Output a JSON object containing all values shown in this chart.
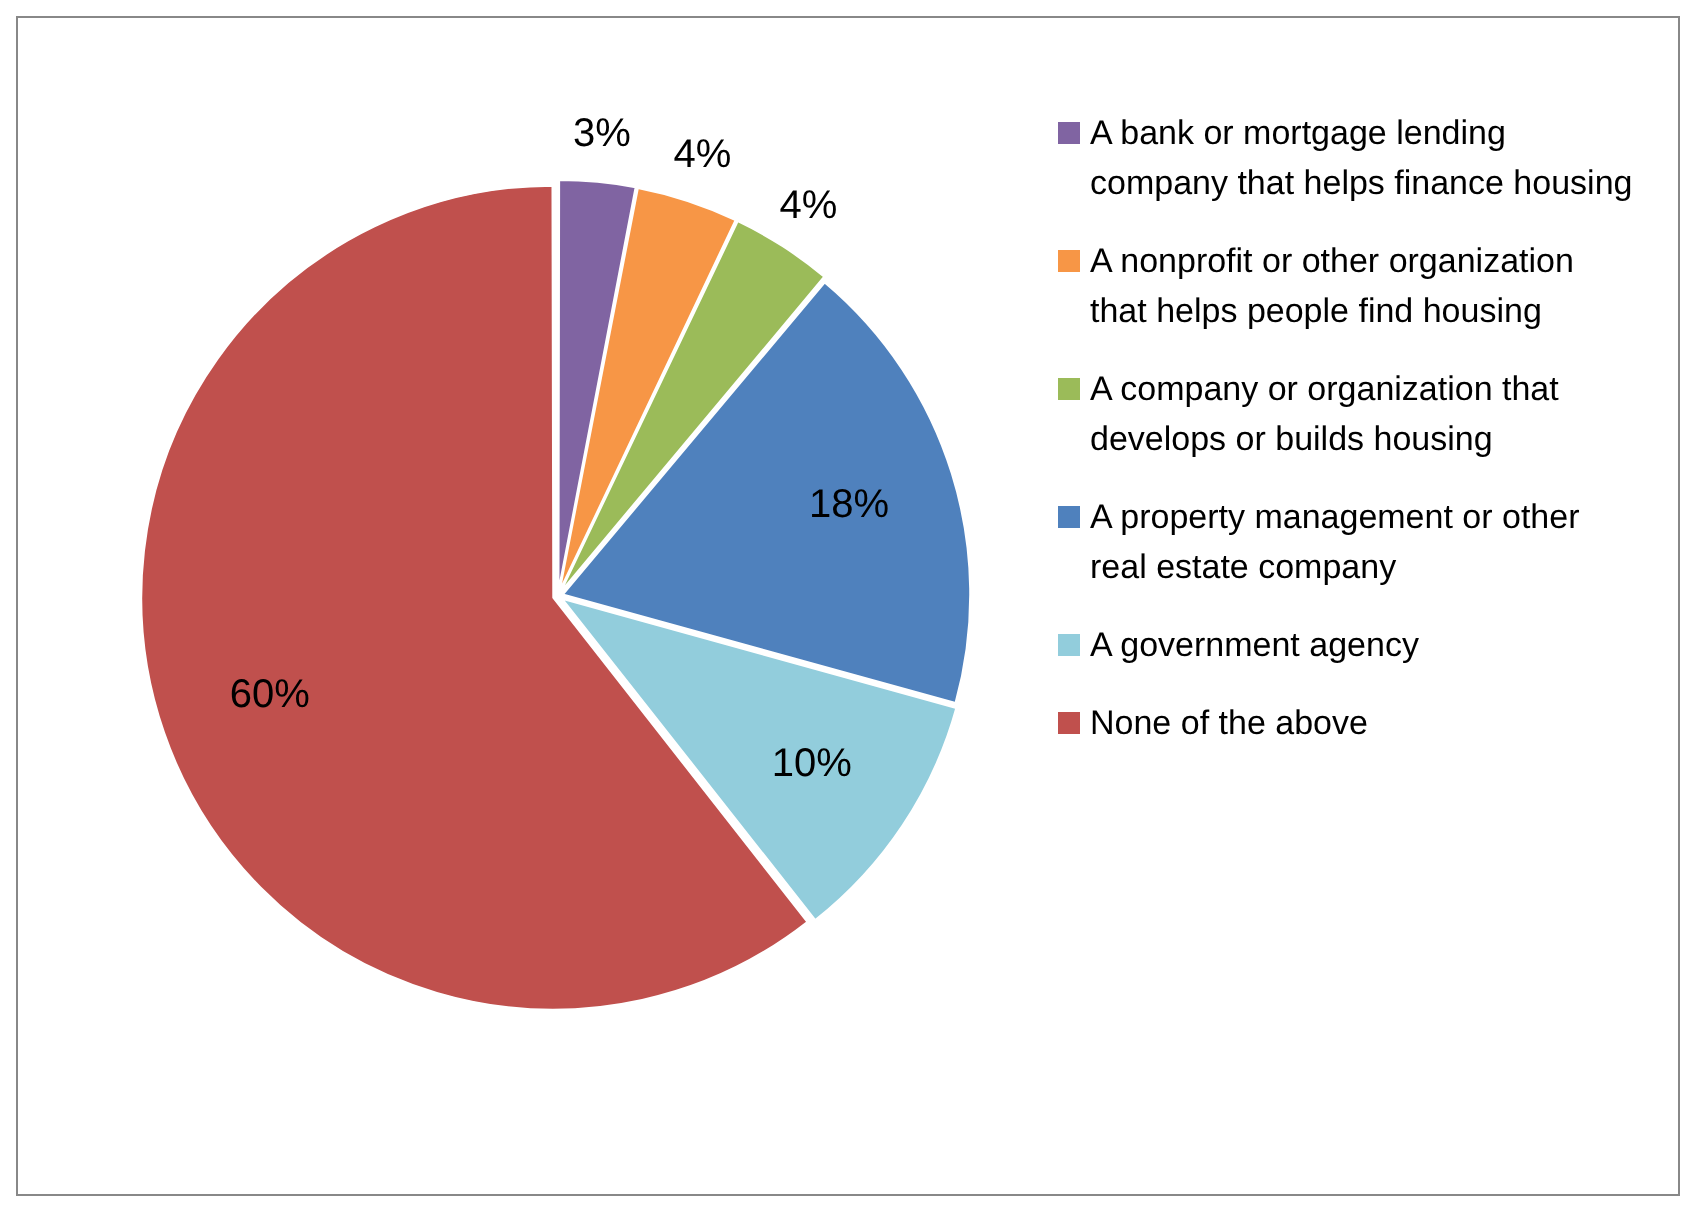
{
  "chart_data": {
    "type": "pie",
    "categories": [
      "A bank or mortgage lending company that helps finance housing",
      "A nonprofit or other organization that helps people find housing",
      "A company or organization that develops or builds housing",
      "A property management or other real estate company",
      "A government agency",
      "None of the above"
    ],
    "values": [
      3,
      4,
      4,
      18,
      10,
      60
    ],
    "value_labels": [
      "3%",
      "4%",
      "4%",
      "18%",
      "10%",
      "60%"
    ],
    "colors": [
      "#8064a2",
      "#f79646",
      "#9bbb59",
      "#4f81bd",
      "#92cddc",
      "#c0504d"
    ],
    "legend": "right"
  }
}
